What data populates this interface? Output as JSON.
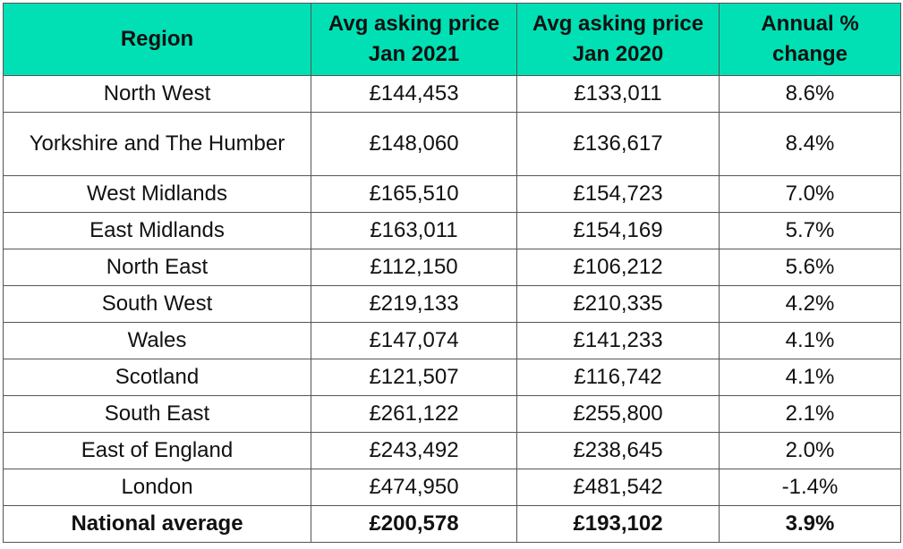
{
  "table": {
    "headers": [
      "Region",
      "Avg asking price Jan 2021",
      "Avg asking price Jan 2020",
      "Annual % change"
    ],
    "rows": [
      [
        "North West",
        "£144,453",
        "£133,011",
        "8.6%"
      ],
      [
        "Yorkshire and The Humber",
        "£148,060",
        "£136,617",
        "8.4%"
      ],
      [
        "West Midlands",
        "£165,510",
        "£154,723",
        "7.0%"
      ],
      [
        "East Midlands",
        "£163,011",
        "£154,169",
        "5.7%"
      ],
      [
        "North East",
        "£112,150",
        "£106,212",
        "5.6%"
      ],
      [
        "South West",
        "£219,133",
        "£210,335",
        "4.2%"
      ],
      [
        "Wales",
        "£147,074",
        "£141,233",
        "4.1%"
      ],
      [
        "Scotland",
        "£121,507",
        "£116,742",
        "4.1%"
      ],
      [
        "South East",
        "£261,122",
        "£255,800",
        "2.1%"
      ],
      [
        "East of England",
        "£243,492",
        "£238,645",
        "2.0%"
      ],
      [
        "London",
        "£474,950",
        "£481,542",
        "-1.4%"
      ]
    ],
    "total_row": [
      "National average",
      "£200,578",
      "£193,102",
      "3.9%"
    ]
  },
  "colors": {
    "header_background": "#00e0b4",
    "border": "#555555",
    "text": "#111111"
  }
}
